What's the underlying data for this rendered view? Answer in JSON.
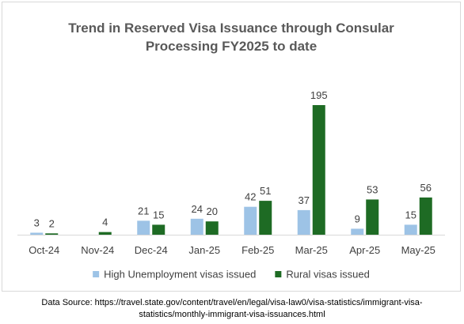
{
  "chart_data": {
    "type": "bar",
    "title": [
      "Trend in Reserved Visa Issuance through Consular",
      "Processing FY2025 to date"
    ],
    "categories": [
      "Oct-24",
      "Nov-24",
      "Dec-24",
      "Jan-25",
      "Feb-25",
      "Mar-25",
      "Apr-25",
      "May-25"
    ],
    "series": [
      {
        "name": "High Unemployment visas issued",
        "color": "#9dc3e6",
        "values": [
          3,
          null,
          21,
          24,
          42,
          37,
          9,
          15
        ]
      },
      {
        "name": "Rural visas issued",
        "color": "#1e6b24",
        "values": [
          2,
          4,
          15,
          20,
          51,
          195,
          53,
          56
        ]
      }
    ],
    "ylim": [
      0,
      195
    ],
    "grid": false,
    "legend": "bottom",
    "axis_color": "#d9d9d9"
  },
  "source_note": [
    "Data Source: https://travel.state.gov/content/travel/en/legal/visa-law0/visa-statistics/immigrant-visa-",
    "statistics/monthly-immigrant-visa-issuances.html"
  ]
}
